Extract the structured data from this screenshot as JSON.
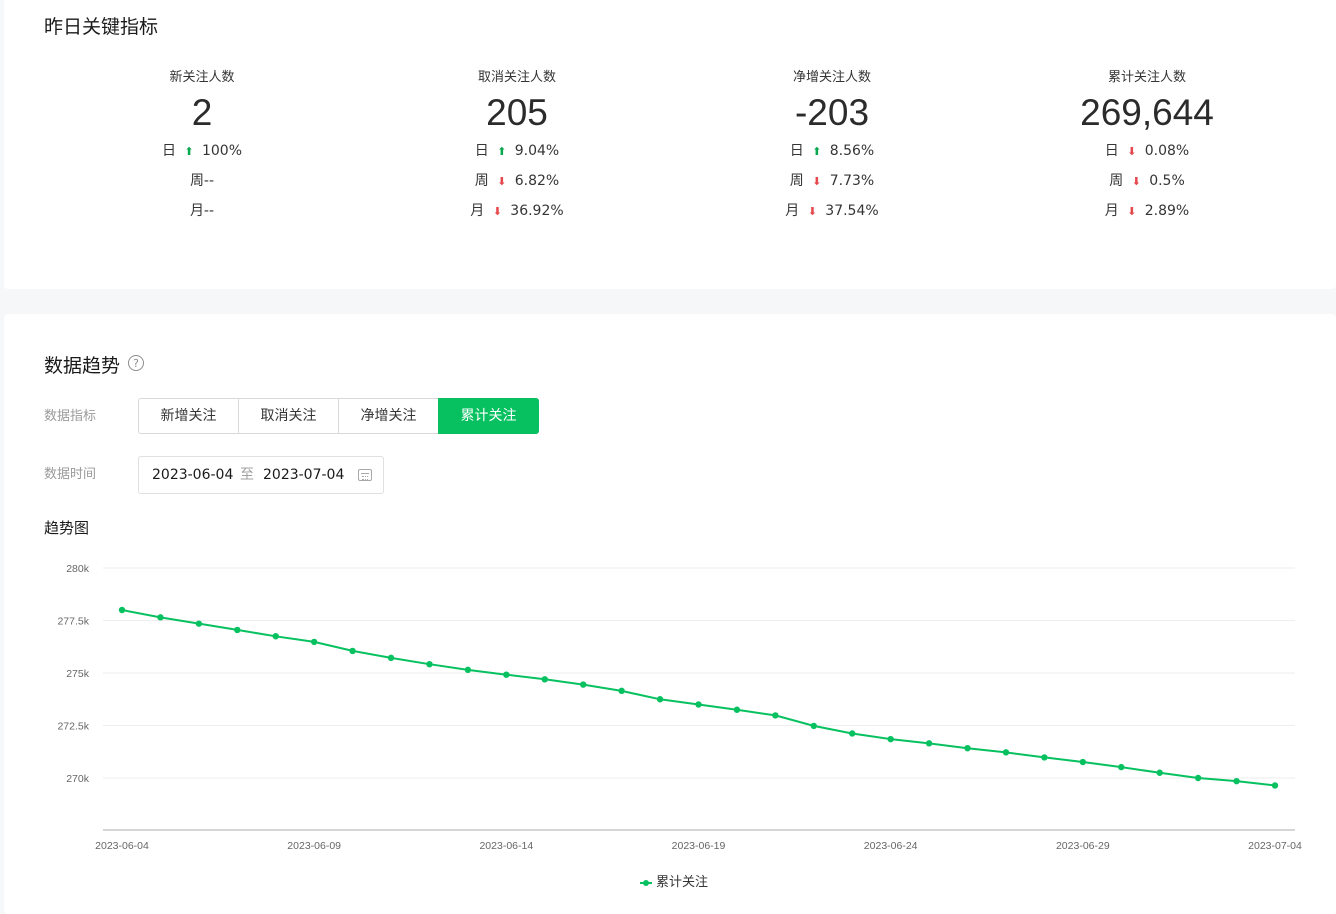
{
  "key_metrics": {
    "title": "昨日关键指标",
    "items": [
      {
        "label": "新关注人数",
        "value": "2",
        "rows": [
          {
            "period": "日",
            "trend": "up",
            "pct": "100%"
          },
          {
            "period": "周--",
            "trend": "none",
            "pct": ""
          },
          {
            "period": "月--",
            "trend": "none",
            "pct": ""
          }
        ]
      },
      {
        "label": "取消关注人数",
        "value": "205",
        "rows": [
          {
            "period": "日",
            "trend": "up",
            "pct": "9.04%"
          },
          {
            "period": "周",
            "trend": "down",
            "pct": "6.82%"
          },
          {
            "period": "月",
            "trend": "down",
            "pct": "36.92%"
          }
        ]
      },
      {
        "label": "净增关注人数",
        "value": "-203",
        "rows": [
          {
            "period": "日",
            "trend": "up",
            "pct": "8.56%"
          },
          {
            "period": "周",
            "trend": "down",
            "pct": "7.73%"
          },
          {
            "period": "月",
            "trend": "down",
            "pct": "37.54%"
          }
        ]
      },
      {
        "label": "累计关注人数",
        "value": "269,644",
        "rows": [
          {
            "period": "日",
            "trend": "down",
            "pct": "0.08%"
          },
          {
            "period": "周",
            "trend": "down",
            "pct": "0.5%"
          },
          {
            "period": "月",
            "trend": "down",
            "pct": "2.89%"
          }
        ]
      }
    ]
  },
  "trend": {
    "title": "数据趋势",
    "help_icon": "?",
    "metric_label": "数据指标",
    "time_label": "数据时间",
    "metric_options": [
      "新增关注",
      "取消关注",
      "净增关注",
      "累计关注"
    ],
    "active_metric": "累计关注",
    "date_start": "2023-06-04",
    "date_sep": "至",
    "date_end": "2023-07-04",
    "chart_title": "趋势图",
    "legend_label": "累计关注"
  },
  "colors": {
    "accent": "#07c160",
    "up": "#07a84f",
    "down": "#e5484d"
  },
  "chart_data": {
    "type": "line",
    "title": "趋势图",
    "xlabel": "",
    "ylabel": "",
    "x": [
      "2023-06-04",
      "2023-06-05",
      "2023-06-06",
      "2023-06-07",
      "2023-06-08",
      "2023-06-09",
      "2023-06-10",
      "2023-06-11",
      "2023-06-12",
      "2023-06-13",
      "2023-06-14",
      "2023-06-15",
      "2023-06-16",
      "2023-06-17",
      "2023-06-18",
      "2023-06-19",
      "2023-06-20",
      "2023-06-21",
      "2023-06-22",
      "2023-06-23",
      "2023-06-24",
      "2023-06-25",
      "2023-06-26",
      "2023-06-27",
      "2023-06-28",
      "2023-06-29",
      "2023-06-30",
      "2023-07-01",
      "2023-07-02",
      "2023-07-03",
      "2023-07-04"
    ],
    "x_tick_labels": [
      "2023-06-04",
      "2023-06-09",
      "2023-06-14",
      "2023-06-19",
      "2023-06-24",
      "2023-06-29",
      "2023-07-04"
    ],
    "y_tick_labels": [
      "280k",
      "277.5k",
      "275k",
      "272.5k",
      "270k"
    ],
    "y_ticks": [
      280000,
      277500,
      275000,
      272500,
      270000
    ],
    "ylim": [
      267500,
      280000
    ],
    "grid": true,
    "legend_position": "bottom",
    "series": [
      {
        "name": "累计关注",
        "color": "#07c160",
        "values": [
          278000,
          277650,
          277350,
          277050,
          276750,
          276480,
          276050,
          275720,
          275420,
          275150,
          274920,
          274700,
          274450,
          274150,
          273750,
          273500,
          273250,
          272980,
          272480,
          272120,
          271850,
          271650,
          271420,
          271220,
          270980,
          270760,
          270520,
          270250,
          270000,
          269850,
          269644
        ]
      }
    ]
  }
}
